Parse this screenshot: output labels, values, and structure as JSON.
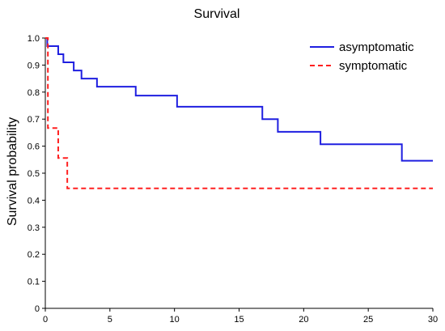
{
  "chart_data": {
    "type": "line",
    "title": "Survival",
    "xlabel": "",
    "ylabel": "Survival probability",
    "xlim": [
      0,
      30
    ],
    "ylim": [
      0,
      1.0
    ],
    "x_ticks": [
      0,
      5,
      10,
      15,
      20,
      25,
      30
    ],
    "y_ticks": [
      0,
      0.1,
      0.2,
      0.3,
      0.4,
      0.5,
      0.6,
      0.7,
      0.8,
      0.9,
      1.0
    ],
    "x_tick_labels": [
      "0",
      "5",
      "10",
      "15",
      "20",
      "25",
      "30"
    ],
    "y_tick_labels": [
      "0",
      "0.1",
      "0.2",
      "0.3",
      "0.4",
      "0.5",
      "0.6",
      "0.7",
      "0.8",
      "0.9",
      "1.0"
    ],
    "grid": false,
    "legend_position": "top-right",
    "series": [
      {
        "name": "asymptomatic",
        "color": "#1f1fe0",
        "style": "solid",
        "step": true,
        "x": [
          0,
          0.15,
          1.0,
          1.4,
          2.2,
          2.8,
          4.0,
          7.0,
          10.2,
          16.8,
          18.0,
          21.3,
          27.6,
          30
        ],
        "y": [
          1.0,
          0.97,
          0.94,
          0.91,
          0.88,
          0.85,
          0.82,
          0.787,
          0.746,
          0.7,
          0.653,
          0.607,
          0.546,
          0.546
        ]
      },
      {
        "name": "symptomatic",
        "color": "#ff2020",
        "style": "dashed",
        "step": true,
        "x": [
          0,
          0.2,
          1.0,
          1.7,
          30
        ],
        "y": [
          1.0,
          0.667,
          0.556,
          0.444,
          0.444
        ]
      }
    ]
  }
}
